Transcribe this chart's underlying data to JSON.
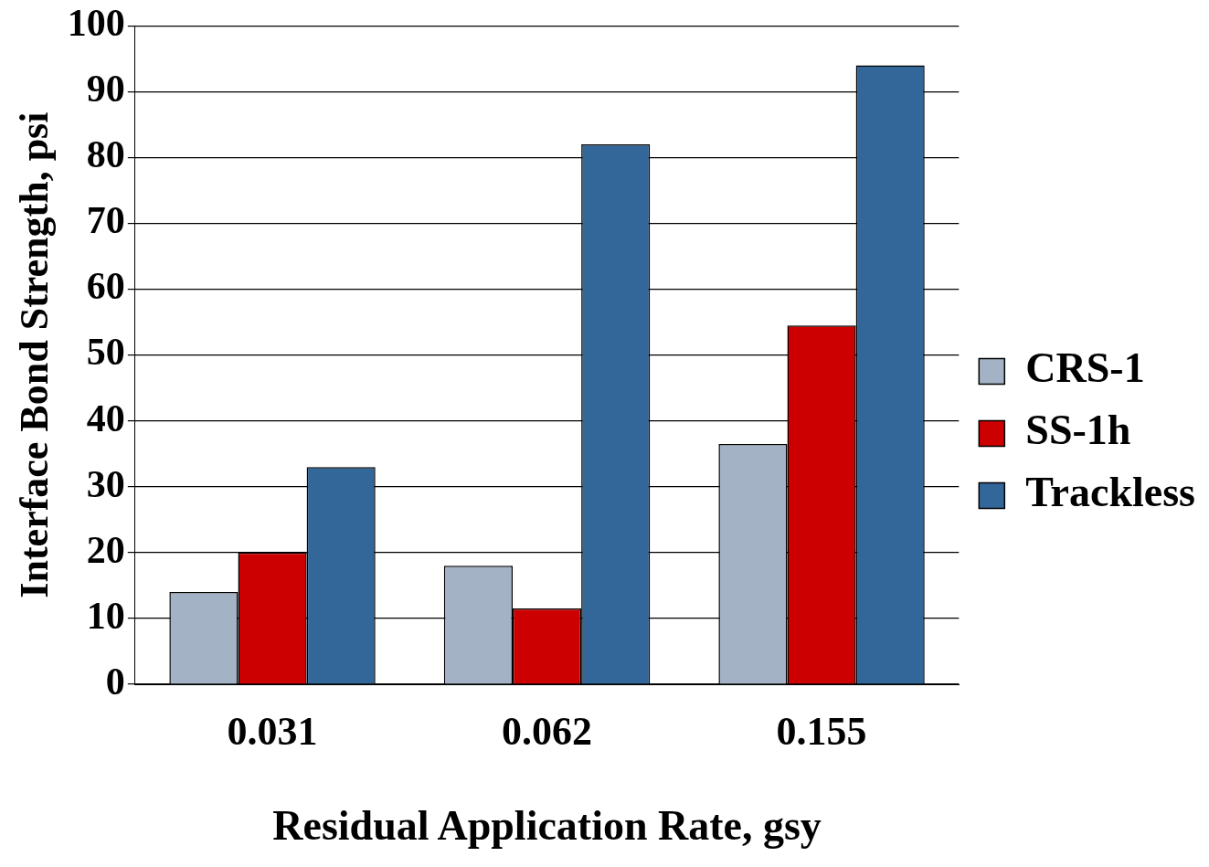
{
  "chart_data": {
    "type": "bar",
    "xlabel": "Residual Application Rate, gsy",
    "ylabel": "Interface Bond Strength, psi",
    "categories": [
      "0.031",
      "0.062",
      "0.155"
    ],
    "series": [
      {
        "name": "CRS-1",
        "color": "#a3b3c5",
        "values": [
          14,
          18,
          36.5
        ]
      },
      {
        "name": "SS-1h",
        "color": "#cc0000",
        "values": [
          20,
          11.5,
          54.5
        ]
      },
      {
        "name": "Trackless",
        "color": "#336699",
        "values": [
          33,
          82,
          94
        ]
      }
    ],
    "ylim": [
      0,
      100
    ],
    "yticks": [
      0,
      10,
      20,
      30,
      40,
      50,
      60,
      70,
      80,
      90,
      100
    ],
    "grid": "y",
    "legend": "right"
  }
}
